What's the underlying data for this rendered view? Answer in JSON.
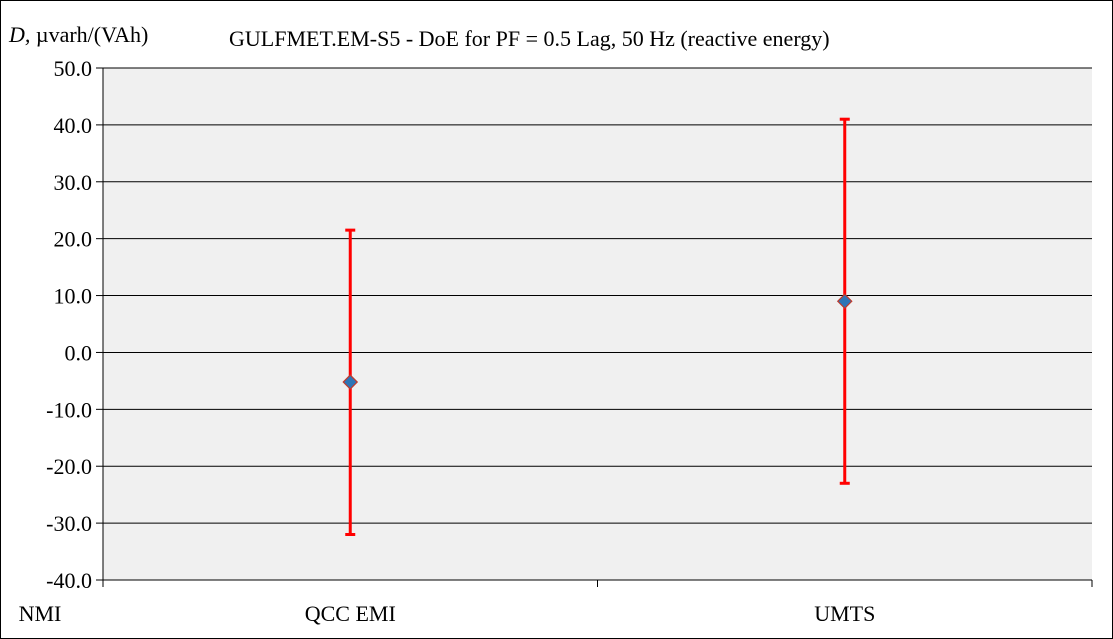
{
  "chart_data": {
    "type": "scatter",
    "title": "GULFMET.EM-S5 - DoE for PF = 0.5 Lag, 50 Hz (reactive energy)",
    "ylabel_symbol": "D,",
    "ylabel_unit": "µvarh/(VAh)",
    "xlabel": "",
    "categories": [
      "NMI",
      "QCC EMI",
      "UMTS"
    ],
    "points": [
      {
        "category": "QCC EMI",
        "value": -5.2,
        "err_low": -32.0,
        "err_high": 21.5
      },
      {
        "category": "UMTS",
        "value": 9.0,
        "err_low": -23.0,
        "err_high": 41.0
      }
    ],
    "ylim": [
      -40.0,
      50.0
    ],
    "yticks": [
      "50.0",
      "40.0",
      "30.0",
      "20.0",
      "10.0",
      "0.0",
      "-10.0",
      "-20.0",
      "-30.0",
      "-40.0"
    ],
    "grid": true,
    "legend": "none",
    "colors": {
      "plot_background": "#F0F0F0",
      "gridline": "#000000",
      "marker_fill": "#2E75B6",
      "marker_edge": "#C0392B",
      "error_bar": "#FF0000"
    }
  }
}
